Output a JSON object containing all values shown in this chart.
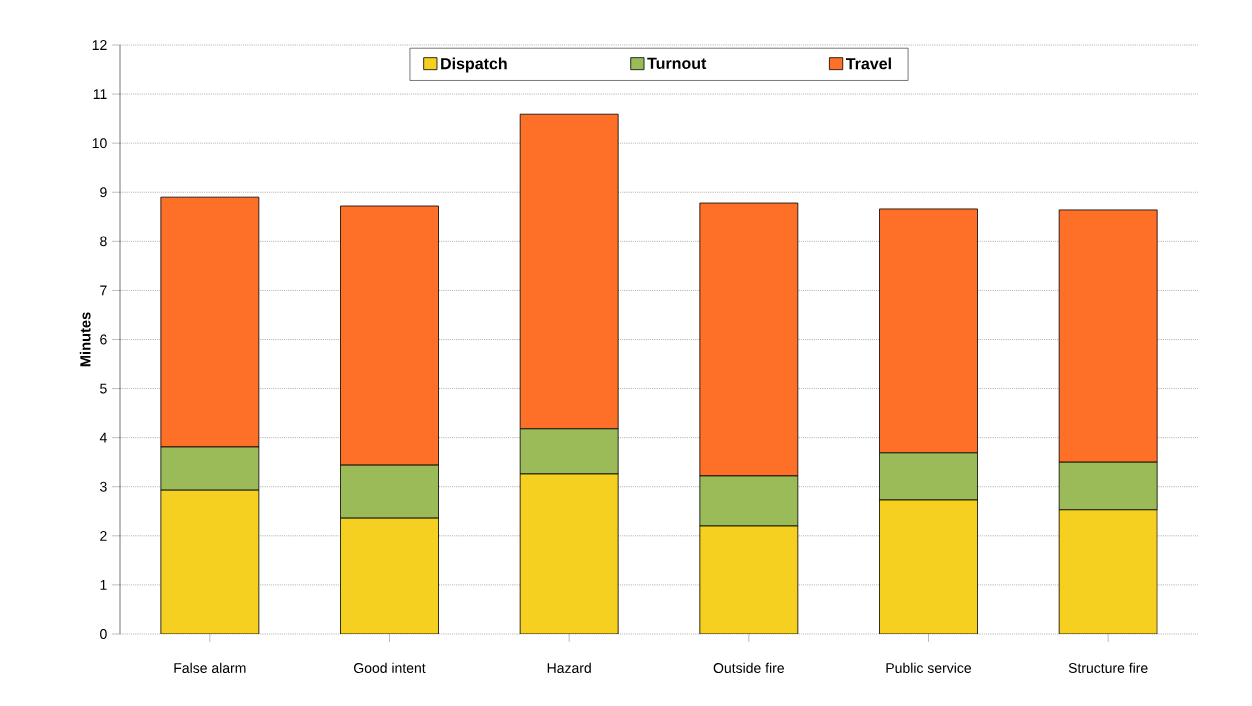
{
  "chart_data": {
    "type": "bar",
    "stacked": true,
    "ylabel": "Minutes",
    "categories": [
      "False alarm",
      "Good intent",
      "Hazard",
      "Outside fire",
      "Public service",
      "Structure fire"
    ],
    "series": [
      {
        "name": "Dispatch",
        "color": "#f5d020",
        "values": [
          2.93,
          2.36,
          3.26,
          2.2,
          2.73,
          2.53
        ]
      },
      {
        "name": "Turnout",
        "color": "#9bbb59",
        "values": [
          0.88,
          1.08,
          0.92,
          1.02,
          0.96,
          0.97
        ]
      },
      {
        "name": "Travel",
        "color": "#fe6f28",
        "values": [
          5.09,
          5.28,
          6.41,
          5.56,
          4.97,
          5.14
        ]
      }
    ],
    "ylim": [
      0,
      12
    ],
    "yticks": [
      0,
      1,
      2,
      3,
      4,
      5,
      6,
      7,
      8,
      9,
      10,
      11,
      12
    ],
    "grid": "y",
    "legend": "top"
  }
}
